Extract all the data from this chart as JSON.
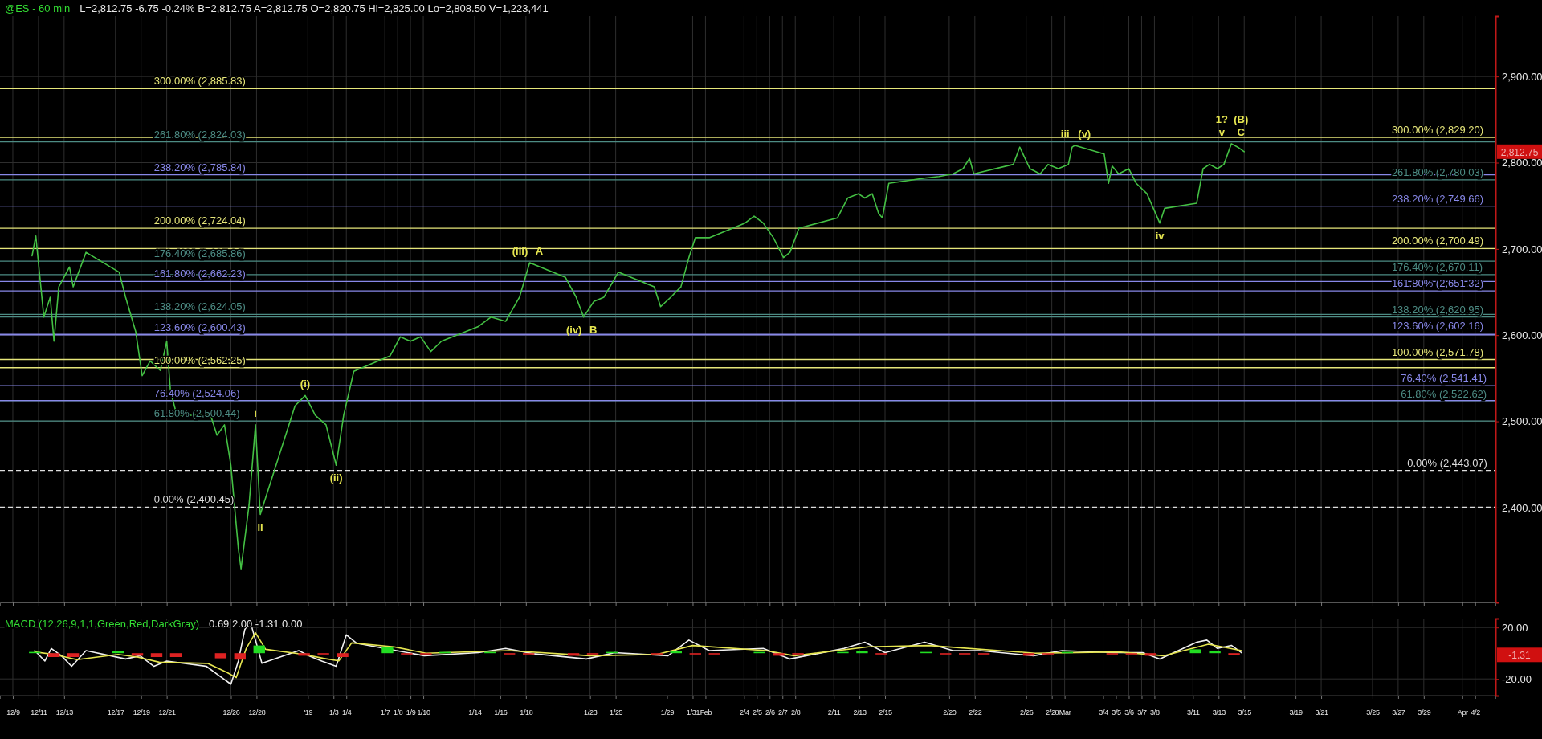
{
  "chart_data": [
    {
      "type": "line",
      "title": "@ES - 60 min",
      "subtitle": "L=2,812.75  -6.75  -0.24%  B=2,812.75  A=2,812.75  O=2,820.75  Hi=2,825.00  Lo=2,808.50  V=1,223,441",
      "xlim": [
        "2018-12-08T00:00",
        "2019-04-03T14:00"
      ],
      "xticks": [
        {
          "value": "2018-12-09",
          "label": null
        },
        {
          "value": "2018-12-11",
          "label": null
        },
        {
          "value": "2018-12-13",
          "label": null
        },
        {
          "value": "2018-12-17",
          "label": null
        },
        {
          "value": "2018-12-19",
          "label": null
        },
        {
          "value": "2018-12-21",
          "label": null
        },
        {
          "value": "2018-12-26",
          "label": null
        },
        {
          "value": "2018-12-28",
          "label": null
        },
        {
          "value": "2019-01-01",
          "label": null
        },
        {
          "value": "2019-01-03",
          "label": null
        },
        {
          "value": "2019-01-04",
          "label": null
        },
        {
          "value": "2019-01-07",
          "label": null
        },
        {
          "value": "2019-01-08",
          "label": null
        },
        {
          "value": "2019-01-09",
          "label": null
        },
        {
          "value": "2019-01-10",
          "label": null
        },
        {
          "value": "2019-01-14",
          "label": null
        },
        {
          "value": "2019-01-16",
          "label": null
        },
        {
          "value": "2019-01-18",
          "label": null
        },
        {
          "value": "2019-01-23",
          "label": null
        },
        {
          "value": "2019-01-25",
          "label": null
        },
        {
          "value": "2019-01-29",
          "label": null
        },
        {
          "value": "2019-01-31",
          "label": null
        },
        {
          "value": "2019-02-01",
          "label": null
        },
        {
          "value": "2019-02-04",
          "label": null
        },
        {
          "value": "2019-02-05",
          "label": null
        },
        {
          "value": "2019-02-06",
          "label": null
        },
        {
          "value": "2019-02-07",
          "label": null
        },
        {
          "value": "2019-02-08",
          "label": null
        },
        {
          "value": "2019-02-11",
          "label": null
        },
        {
          "value": "2019-02-13",
          "label": null
        },
        {
          "value": "2019-02-15",
          "label": null
        },
        {
          "value": "2019-02-20",
          "label": null
        },
        {
          "value": "2019-02-22",
          "label": null
        },
        {
          "value": "2019-02-26",
          "label": null
        },
        {
          "value": "2019-02-28",
          "label": null
        },
        {
          "value": "2019-03-01",
          "label": null
        },
        {
          "value": "2019-03-04",
          "label": null
        },
        {
          "value": "2019-03-05",
          "label": null
        },
        {
          "value": "2019-03-06",
          "label": null
        },
        {
          "value": "2019-03-07",
          "label": null
        },
        {
          "value": "2019-03-08",
          "label": null
        },
        {
          "value": "2019-03-11",
          "label": null
        },
        {
          "value": "2019-03-13",
          "label": null
        },
        {
          "value": "2019-03-15",
          "label": null
        },
        {
          "value": "2019-03-19",
          "label": null
        },
        {
          "value": "2019-03-21",
          "label": null
        },
        {
          "value": "2019-03-25",
          "label": null
        },
        {
          "value": "2019-03-27",
          "label": null
        },
        {
          "value": "2019-03-29",
          "label": null
        },
        {
          "value": "2019-04-01",
          "label": null
        },
        {
          "value": "2019-04-02",
          "label": null
        }
      ],
      "ylim": [
        2290,
        2970
      ],
      "yticks": [
        {
          "value": 2400,
          "label": "2,400.00"
        },
        {
          "value": 2500,
          "label": "2,500.00"
        },
        {
          "value": 2600,
          "label": "2,600.00"
        },
        {
          "value": 2700,
          "label": "2,700.00"
        },
        {
          "value": 2800,
          "label": "2,800.00"
        },
        {
          "value": 2900,
          "label": "2,900.00"
        }
      ],
      "tick_labels": "y",
      "grid": true,
      "series": [
        {
          "color": "#44c044",
          "x": [
            "2018-12-10T12:00",
            "2018-12-10T19:00",
            "2018-12-11T10:00",
            "2018-12-11T22:00",
            "2018-12-12T05:00",
            "2018-12-12T14:00",
            "2018-12-13T10:00",
            "2018-12-13T17:00",
            "2018-12-14T17:00",
            "2018-12-17T07:00",
            "2018-12-17T19:00",
            "2018-12-18T14:00",
            "2018-12-19T02:00",
            "2018-12-19T17:00",
            "2018-12-20T12:00",
            "2018-12-21T00:00",
            "2018-12-21T07:00",
            "2018-12-21T19:00",
            "2018-12-24T10:00",
            "2018-12-24T22:00",
            "2018-12-25T12:00",
            "2018-12-26T00:00",
            "2018-12-26T14:00",
            "2018-12-26T19:00",
            "2018-12-27T10:00",
            "2018-12-27T22:00",
            "2018-12-28T07:00",
            "2018-12-31T00:00",
            "2018-12-31T19:00",
            "2019-01-01T14:00",
            "2019-01-02T10:00",
            "2019-01-03T05:00",
            "2019-01-03T19:00",
            "2019-01-04T14:00",
            "2019-01-07T10:00",
            "2019-01-08T05:00",
            "2019-01-09T00:00",
            "2019-01-09T19:00",
            "2019-01-10T14:00",
            "2019-01-11T10:00",
            "2019-01-14T07:00",
            "2019-01-15T07:00",
            "2019-01-16T10:00",
            "2019-01-17T12:00",
            "2019-01-18T07:00",
            "2019-01-21T02:00",
            "2019-01-21T22:00",
            "2019-01-22T12:00",
            "2019-01-23T07:00",
            "2019-01-24T02:00",
            "2019-01-25T05:00",
            "2019-01-28T00:00",
            "2019-01-28T12:00",
            "2019-01-29T07:00",
            "2019-01-30T02:00",
            "2019-01-30T17:00",
            "2019-01-31T05:00",
            "2019-02-01T07:00",
            "2019-02-04T02:00",
            "2019-02-04T19:00",
            "2019-02-05T12:00",
            "2019-02-06T07:00",
            "2019-02-07T02:00",
            "2019-02-07T14:00",
            "2019-02-08T07:00",
            "2019-02-11T07:00",
            "2019-02-12T02:00",
            "2019-02-12T22:00",
            "2019-02-13T10:00",
            "2019-02-14T00:00",
            "2019-02-14T12:00",
            "2019-02-14T19:00",
            "2019-02-15T07:00",
            "2019-02-18T02:00",
            "2019-02-19T05:00",
            "2019-02-20T07:00",
            "2019-02-21T02:00",
            "2019-02-21T14:00",
            "2019-02-21T22:00",
            "2019-02-25T00:00",
            "2019-02-25T12:00",
            "2019-02-26T07:00",
            "2019-02-27T02:00",
            "2019-02-27T17:00",
            "2019-02-28T12:00",
            "2019-03-01T07:00",
            "2019-03-01T14:00",
            "2019-03-01T19:00",
            "2019-03-04T02:00",
            "2019-03-04T10:00",
            "2019-03-04T17:00",
            "2019-03-05T05:00",
            "2019-03-06T00:00",
            "2019-03-06T14:00",
            "2019-03-07T10:00",
            "2019-03-07T22:00",
            "2019-03-08T10:00",
            "2019-03-08T19:00",
            "2019-03-11T07:00",
            "2019-03-11T19:00",
            "2019-03-12T07:00",
            "2019-03-12T22:00",
            "2019-03-13T10:00",
            "2019-03-14T00:00",
            "2019-03-14T12:00",
            "2019-03-15T00:00"
          ],
          "values": [
            2692,
            2715,
            2621,
            2644,
            2593,
            2656,
            2679,
            2656,
            2696,
            2673,
            2644,
            2604,
            2553,
            2570,
            2559,
            2593,
            2535,
            2507,
            2507,
            2484,
            2496,
            2449,
            2352,
            2329,
            2403,
            2496,
            2392,
            2518,
            2530,
            2507,
            2496,
            2449,
            2507,
            2558,
            2576,
            2598,
            2593,
            2598,
            2581,
            2593,
            2610,
            2621,
            2616,
            2644,
            2684,
            2667,
            2644,
            2621,
            2639,
            2644,
            2673,
            2656,
            2633,
            2644,
            2656,
            2690,
            2713,
            2713,
            2730,
            2738,
            2730,
            2713,
            2690,
            2696,
            2724,
            2736,
            2759,
            2764,
            2759,
            2764,
            2741,
            2736,
            2776,
            2782,
            2784,
            2787,
            2793,
            2805,
            2787,
            2798,
            2818,
            2793,
            2787,
            2798,
            2793,
            2798,
            2818,
            2820,
            2810,
            2776,
            2796,
            2787,
            2793,
            2776,
            2764,
            2747,
            2730,
            2747,
            2753,
            2793,
            2798,
            2793,
            2798,
            2822,
            2818,
            2812.75
          ]
        }
      ],
      "ref_lines": [
        {
          "axis": "y",
          "value": 2885.83,
          "color": "#e6e67a"
        },
        {
          "axis": "y",
          "value": 2824.03,
          "color": "#4d8c84"
        },
        {
          "axis": "y",
          "value": 2785.84,
          "color": "#8888e8"
        },
        {
          "axis": "y",
          "value": 2724.04,
          "color": "#e6e67a"
        },
        {
          "axis": "y",
          "value": 2685.86,
          "color": "#4d8c84"
        },
        {
          "axis": "y",
          "value": 2662.23,
          "color": "#8888e8"
        },
        {
          "axis": "y",
          "value": 2624.05,
          "color": "#4d8c84"
        },
        {
          "axis": "y",
          "value": 2600.43,
          "color": "#8888e8"
        },
        {
          "axis": "y",
          "value": 2562.25,
          "color": "#e6e67a"
        },
        {
          "axis": "y",
          "value": 2524.06,
          "color": "#8888e8"
        },
        {
          "axis": "y",
          "value": 2500.44,
          "color": "#4d8c84"
        },
        {
          "axis": "y",
          "value": 2400.45,
          "color": "#dddddd",
          "line_style": "dashed"
        },
        {
          "axis": "y",
          "value": 2829.2,
          "color": "#e6e67a"
        },
        {
          "axis": "y",
          "value": 2780.03,
          "color": "#4d8c84"
        },
        {
          "axis": "y",
          "value": 2749.66,
          "color": "#8888e8"
        },
        {
          "axis": "y",
          "value": 2700.49,
          "color": "#e6e67a"
        },
        {
          "axis": "y",
          "value": 2670.11,
          "color": "#4d8c84"
        },
        {
          "axis": "y",
          "value": 2651.32,
          "color": "#8888e8"
        },
        {
          "axis": "y",
          "value": 2620.95,
          "color": "#4d8c84"
        },
        {
          "axis": "y",
          "value": 2602.16,
          "color": "#8888e8"
        },
        {
          "axis": "y",
          "value": 2571.78,
          "color": "#e6e67a"
        },
        {
          "axis": "y",
          "value": 2541.41,
          "color": "#8888e8"
        },
        {
          "axis": "y",
          "value": 2522.62,
          "color": "#4d8c84"
        },
        {
          "axis": "y",
          "value": 2443.07,
          "color": "#dddddd",
          "line_style": "dashed"
        }
      ],
      "annotations": [
        {
          "text": "300.00% (2,885.83)",
          "x": "2018-12-20T00:00",
          "y": 2885.83
        },
        {
          "text": "261.80% (2,824.03)",
          "x": "2018-12-20T00:00",
          "y": 2824.03
        },
        {
          "text": "238.20% (2,785.84)",
          "x": "2018-12-20T00:00",
          "y": 2785.84
        },
        {
          "text": "200.00% (2,724.04)",
          "x": "2018-12-20T00:00",
          "y": 2724.04
        },
        {
          "text": "176.40% (2,685.86)",
          "x": "2018-12-20T00:00",
          "y": 2685.86
        },
        {
          "text": "161.80% (2,662.23)",
          "x": "2018-12-20T00:00",
          "y": 2662.23
        },
        {
          "text": "138.20% (2,624.05)",
          "x": "2018-12-20T00:00",
          "y": 2624.05
        },
        {
          "text": "123.60% (2,600.43)",
          "x": "2018-12-20T00:00",
          "y": 2600.43
        },
        {
          "text": "100.00% (2,562.25)",
          "x": "2018-12-20T00:00",
          "y": 2562.25
        },
        {
          "text": "76.40% (2,524.06)",
          "x": "2018-12-20T00:00",
          "y": 2524.06
        },
        {
          "text": "61.80% (2,500.44)",
          "x": "2018-12-20T00:00",
          "y": 2500.44
        },
        {
          "text": "0.00% (2,400.45)",
          "x": "2018-12-20T00:00",
          "y": 2400.45
        },
        {
          "text": "300.00% (2,829.20)",
          "x": "2019-03-26T12:00",
          "y": 2829.2
        },
        {
          "text": "261.80% (2,780.03)",
          "x": "2019-03-26T12:00",
          "y": 2780.03
        },
        {
          "text": "238.20% (2,749.66)",
          "x": "2019-03-26T12:00",
          "y": 2749.66
        },
        {
          "text": "200.00% (2,700.49)",
          "x": "2019-03-26T12:00",
          "y": 2700.49
        },
        {
          "text": "176.40% (2,670.11)",
          "x": "2019-03-26T12:00",
          "y": 2670.11
        },
        {
          "text": "161.80% (2,651.32)",
          "x": "2019-03-26T12:00",
          "y": 2651.32
        },
        {
          "text": "138.20% (2,620.95)",
          "x": "2019-03-26T12:00",
          "y": 2620.95
        },
        {
          "text": "123.60% (2,602.16)",
          "x": "2019-03-26T12:00",
          "y": 2602.16
        },
        {
          "text": "100.00% (2,571.78)",
          "x": "2019-03-26T12:00",
          "y": 2571.78
        },
        {
          "text": "76.40% (2,541.41)",
          "x": "2019-03-27T05:00",
          "y": 2541.41
        },
        {
          "text": "61.80% (2,522.62)",
          "x": "2019-03-27T05:00",
          "y": 2522.62
        },
        {
          "text": "0.00% (2,443.07)",
          "x": "2019-03-27T17:00",
          "y": 2443.07
        },
        {
          "text": "i",
          "x": "2018-12-27T22:00",
          "y": 2496
        },
        {
          "text": "ii",
          "x": "2018-12-28T07:00",
          "y": 2392
        },
        {
          "text": "(i)",
          "x": "2018-12-31T19:00",
          "y": 2530
        },
        {
          "text": "(ii)",
          "x": "2019-01-03T05:00",
          "y": 2449
        },
        {
          "text": "(iii)",
          "x": "2019-01-18T07:00",
          "y": 2684
        },
        {
          "text": "A",
          "x": "2019-01-18T07:00",
          "y": 2684
        },
        {
          "text": "(iv)",
          "x": "2019-01-22T12:00",
          "y": 2621
        },
        {
          "text": "B",
          "x": "2019-01-22T12:00",
          "y": 2621
        },
        {
          "text": "iii",
          "x": "2019-03-01T19:00",
          "y": 2820
        },
        {
          "text": "(v)",
          "x": "2019-03-01T19:00",
          "y": 2820
        },
        {
          "text": "iv",
          "x": "2019-03-08T10:00",
          "y": 2730
        },
        {
          "text": "1?",
          "x": "2019-03-14T00:00",
          "y": 2822
        },
        {
          "text": "(B)",
          "x": "2019-03-14T00:00",
          "y": 2822
        },
        {
          "text": "v",
          "x": "2019-03-14T00:00",
          "y": 2822
        },
        {
          "text": "C",
          "x": "2019-03-14T00:00",
          "y": 2822
        },
        "2,812.75"
      ]
    },
    {
      "type": "line",
      "title": "MACD (12,26,9,1,1,Green,Red,DarkGray)",
      "subtitle": "0.69  2.00  -1.31  0.00",
      "xlim": [
        "2018-12-08T00:00",
        "2019-04-03T14:00"
      ],
      "xticks": [
        {
          "value": "2018-12-09",
          "label": "12/9"
        },
        {
          "value": "2018-12-11",
          "label": "12/11"
        },
        {
          "value": "2018-12-13",
          "label": "12/13"
        },
        {
          "value": "2018-12-17",
          "label": "12/17"
        },
        {
          "value": "2018-12-19",
          "label": "12/19"
        },
        {
          "value": "2018-12-21",
          "label": "12/21"
        },
        {
          "value": "2018-12-26",
          "label": "12/26"
        },
        {
          "value": "2018-12-28",
          "label": "12/28"
        },
        {
          "value": "2019-01-01",
          "label": "'19"
        },
        {
          "value": "2019-01-03",
          "label": "1/3"
        },
        {
          "value": "2019-01-04",
          "label": "1/4"
        },
        {
          "value": "2019-01-07",
          "label": "1/7"
        },
        {
          "value": "2019-01-08",
          "label": "1/8"
        },
        {
          "value": "2019-01-09",
          "label": "1/9"
        },
        {
          "value": "2019-01-10",
          "label": "1/10"
        },
        {
          "value": "2019-01-14",
          "label": "1/14"
        },
        {
          "value": "2019-01-16",
          "label": "1/16"
        },
        {
          "value": "2019-01-18",
          "label": "1/18"
        },
        {
          "value": "2019-01-23",
          "label": "1/23"
        },
        {
          "value": "2019-01-25",
          "label": "1/25"
        },
        {
          "value": "2019-01-29",
          "label": "1/29"
        },
        {
          "value": "2019-01-31",
          "label": "1/31"
        },
        {
          "value": "2019-02-01",
          "label": "Feb"
        },
        {
          "value": "2019-02-04",
          "label": "2/4"
        },
        {
          "value": "2019-02-05",
          "label": "2/5"
        },
        {
          "value": "2019-02-06",
          "label": "2/6"
        },
        {
          "value": "2019-02-07",
          "label": "2/7"
        },
        {
          "value": "2019-02-08",
          "label": "2/8"
        },
        {
          "value": "2019-02-11",
          "label": "2/11"
        },
        {
          "value": "2019-02-13",
          "label": "2/13"
        },
        {
          "value": "2019-02-15",
          "label": "2/15"
        },
        {
          "value": "2019-02-20",
          "label": "2/20"
        },
        {
          "value": "2019-02-22",
          "label": "2/22"
        },
        {
          "value": "2019-02-26",
          "label": "2/26"
        },
        {
          "value": "2019-02-28",
          "label": "2/28"
        },
        {
          "value": "2019-03-01",
          "label": "Mar"
        },
        {
          "value": "2019-03-04",
          "label": "3/4"
        },
        {
          "value": "2019-03-05",
          "label": "3/5"
        },
        {
          "value": "2019-03-06",
          "label": "3/6"
        },
        {
          "value": "2019-03-07",
          "label": "3/7"
        },
        {
          "value": "2019-03-08",
          "label": "3/8"
        },
        {
          "value": "2019-03-11",
          "label": "3/11"
        },
        {
          "value": "2019-03-13",
          "label": "3/13"
        },
        {
          "value": "2019-03-15",
          "label": "3/15"
        },
        {
          "value": "2019-03-19",
          "label": "3/19"
        },
        {
          "value": "2019-03-21",
          "label": "3/21"
        },
        {
          "value": "2019-03-25",
          "label": "3/25"
        },
        {
          "value": "2019-03-27",
          "label": "3/27"
        },
        {
          "value": "2019-03-29",
          "label": "3/29"
        },
        {
          "value": "2019-04-01",
          "label": "Apr"
        },
        {
          "value": "2019-04-02",
          "label": "4/2"
        }
      ],
      "ylim": [
        -33,
        27
      ],
      "yticks": [
        {
          "value": 20,
          "label": "20.00"
        },
        {
          "value": -20,
          "label": "-20.00"
        }
      ],
      "grid": true,
      "series": [
        {
          "type": "bar",
          "x": [
            "2018-12-10T17:00",
            "2018-12-12T05:00",
            "2018-12-13T17:00",
            "2018-12-17T05:00",
            "2018-12-18T17:00",
            "2018-12-20T05:00",
            "2018-12-21T17:00",
            "2018-12-25T05:00",
            "2018-12-26T17:00",
            "2018-12-28T05:00",
            "2018-12-31T17:00",
            "2019-01-02T05:00",
            "2019-01-03T17:00",
            "2019-01-07T05:00",
            "2019-01-08T17:00",
            "2019-01-10T05:00",
            "2019-01-11T17:00",
            "2019-01-15T05:00",
            "2019-01-16T17:00",
            "2019-01-18T05:00",
            "2019-01-21T17:00",
            "2019-01-23T05:00",
            "2019-01-24T17:00",
            "2019-01-28T05:00",
            "2019-01-29T17:00",
            "2019-01-31T05:00",
            "2019-02-01T17:00",
            "2019-02-05T05:00",
            "2019-02-06T17:00",
            "2019-02-08T05:00",
            "2019-02-11T17:00",
            "2019-02-13T05:00",
            "2019-02-14T17:00",
            "2019-02-18T05:00",
            "2019-02-19T17:00",
            "2019-02-21T05:00",
            "2019-02-22T17:00",
            "2019-02-26T05:00",
            "2019-02-27T17:00",
            "2019-03-01T05:00",
            "2019-03-04T17:00",
            "2019-03-06T05:00",
            "2019-03-07T17:00",
            "2019-03-11T05:00",
            "2019-03-12T17:00",
            "2019-03-14T05:00"
          ],
          "values": [
            1,
            -3,
            -3,
            2,
            -2,
            -3,
            -3,
            -4,
            -5,
            6,
            -2,
            -1,
            -3,
            5,
            -1,
            -1,
            1,
            1,
            -1,
            -1,
            -2,
            -1,
            1,
            -1,
            2,
            -1,
            -1,
            1,
            -2,
            -1,
            1,
            2,
            -1,
            1,
            -1,
            -1,
            -1,
            -2,
            -1,
            1,
            -1,
            -1,
            -2,
            3,
            2,
            -1.31
          ],
          "colors": [
            "#22dd22",
            "#dd2222",
            "#dd2222",
            "#22dd22",
            "#dd2222",
            "#dd2222",
            "#dd2222",
            "#dd2222",
            "#dd2222",
            "#22dd22",
            "#dd2222",
            "#dd2222",
            "#dd2222",
            "#22dd22",
            "#dd2222",
            "#dd2222",
            "#22dd22",
            "#22dd22",
            "#dd2222",
            "#dd2222",
            "#dd2222",
            "#dd2222",
            "#22dd22",
            "#dd2222",
            "#22dd22",
            "#dd2222",
            "#dd2222",
            "#22dd22",
            "#dd2222",
            "#dd2222",
            "#22dd22",
            "#22dd22",
            "#dd2222",
            "#22dd22",
            "#dd2222",
            "#dd2222",
            "#dd2222",
            "#dd2222",
            "#dd2222",
            "#22dd22",
            "#dd2222",
            "#dd2222",
            "#dd2222",
            "#22dd22",
            "#22dd22",
            "#dd2222"
          ]
        },
        {
          "color": "#f0f0f0",
          "x": [
            "2018-12-10T17:00",
            "2018-12-11T12:00",
            "2018-12-12T00:00",
            "2018-12-12T19:00",
            "2018-12-13T14:00",
            "2018-12-14T17:00",
            "2018-12-17T19:00",
            "2018-12-18T22:00",
            "2018-12-20T00:00",
            "2018-12-21T00:00",
            "2018-12-24T02:00",
            "2018-12-25T05:00",
            "2018-12-26T00:00",
            "2018-12-26T14:00",
            "2018-12-27T02:00",
            "2018-12-27T12:00",
            "2018-12-27T22:00",
            "2018-12-28T10:00",
            "2018-12-31T07:00",
            "2019-01-01T02:00",
            "2019-01-02T02:00",
            "2019-01-03T05:00",
            "2019-01-04T00:00",
            "2019-01-04T19:00",
            "2019-01-07T22:00",
            "2019-01-10T02:00",
            "2019-01-14T07:00",
            "2019-01-16T10:00",
            "2019-01-18T14:00",
            "2019-01-22T17:00",
            "2019-01-24T22:00",
            "2019-01-29T02:00",
            "2019-01-30T17:00",
            "2019-02-01T07:00",
            "2019-02-05T12:00",
            "2019-02-07T14:00",
            "2019-02-11T19:00",
            "2019-02-13T10:00",
            "2019-02-15T00:00",
            "2019-02-18T02:00",
            "2019-02-20T07:00",
            "2019-02-22T10:00",
            "2019-02-26T14:00",
            "2019-02-28T19:00",
            "2019-03-04T22:00",
            "2019-03-07T02:00",
            "2019-03-08T10:00",
            "2019-03-11T07:00",
            "2019-03-12T02:00",
            "2019-03-12T22:00",
            "2019-03-14T00:00",
            "2019-03-14T19:00"
          ],
          "values": [
            2.0,
            -6.1,
            3.7,
            -2.0,
            -10.2,
            2.0,
            -4.5,
            -2.0,
            -10.2,
            -6.1,
            -10.2,
            -18.4,
            -24.1,
            -6.1,
            18.4,
            24.9,
            10.2,
            -7.8,
            2.0,
            -2.0,
            -6.1,
            -10.2,
            14.3,
            7.8,
            2.0,
            -2.0,
            0.4,
            3.7,
            -0.4,
            -4.5,
            0.4,
            -2.0,
            10.2,
            2.0,
            3.7,
            -4.5,
            3.7,
            8.6,
            0.4,
            8.6,
            2.0,
            2.0,
            -2.0,
            2.0,
            0.4,
            0.4,
            -4.5,
            8.6,
            10.2,
            3.7,
            6.1,
            0.4
          ]
        },
        {
          "color": "#e6e650",
          "x": [
            "2018-12-10T17:00",
            "2018-12-12T05:00",
            "2018-12-14T00:00",
            "2018-12-17T05:00",
            "2018-12-18T17:00",
            "2018-12-20T10:00",
            "2018-12-24T05:00",
            "2018-12-25T17:00",
            "2018-12-26T10:00",
            "2018-12-27T05:00",
            "2018-12-27T22:00",
            "2018-12-28T17:00",
            "2018-12-31T17:00",
            "2019-01-02T05:00",
            "2019-01-03T10:00",
            "2019-01-04T10:00",
            "2019-01-07T17:00",
            "2019-01-10T05:00",
            "2019-01-16T17:00",
            "2019-01-23T00:00",
            "2019-01-28T05:00",
            "2019-01-31T00:00",
            "2019-02-05T17:00",
            "2019-02-07T22:00",
            "2019-02-13T17:00",
            "2019-02-18T10:00",
            "2019-02-26T17:00",
            "2019-03-05T05:00",
            "2019-03-08T17:00",
            "2019-03-12T05:00",
            "2019-03-14T19:00"
          ],
          "values": [
            1,
            -1,
            -5,
            -1,
            -3,
            -7,
            -8,
            -15,
            -19,
            4,
            16,
            3,
            -1,
            -4,
            -6,
            8,
            5,
            0,
            2,
            -2,
            -1,
            6,
            2,
            -2,
            5,
            6,
            0,
            1,
            -2,
            7,
            2
          ]
        }
      ],
      "annotations": [
        "-1.31"
      ]
    }
  ]
}
